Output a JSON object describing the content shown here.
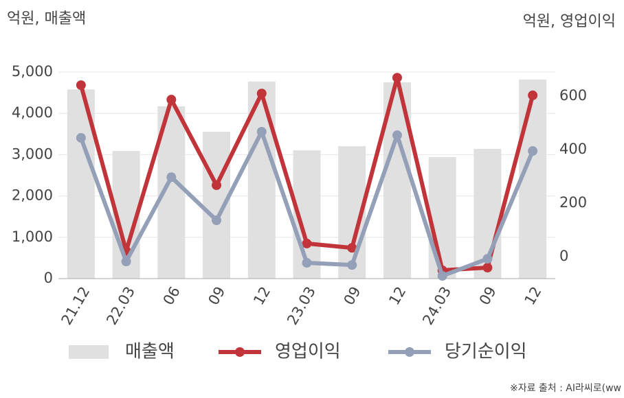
{
  "chart_data": {
    "type": "bar-line",
    "left_unit_label": "억원, 매출액",
    "right_unit_label": "억원, 영업이익",
    "source": "※자료 출처 : AI라씨로(ww",
    "categories": [
      "21.12",
      "22.03",
      "06",
      "09",
      "12",
      "23.03",
      "09",
      "12",
      "24.03",
      "09",
      "12"
    ],
    "series": [
      {
        "name": "매출액",
        "type": "bar",
        "color": "#e0e0e0",
        "values": [
          4580,
          3090,
          4170,
          3555,
          4770,
          3105,
          3205,
          4750,
          2940,
          3140,
          4820
        ]
      },
      {
        "name": "영업이익",
        "type": "line",
        "axis": "y2",
        "color": "#c0343a",
        "values": [
          641,
          21,
          587,
          267,
          610,
          49,
          33,
          669,
          -51,
          -41,
          603
        ]
      },
      {
        "name": "당기순이익",
        "type": "line",
        "axis": "y2",
        "color": "#94a0b8",
        "values": [
          444,
          -18,
          297,
          136,
          467,
          -23,
          -31,
          454,
          -72,
          -8,
          395
        ]
      }
    ],
    "ylim": [
      0,
      5000
    ],
    "yticks": [
      0,
      {
        "value": 1000,
        "label": "1,000"
      },
      {
        "value": 2000,
        "label": "2,000"
      },
      {
        "value": 3000,
        "label": "3,000"
      },
      {
        "value": 4000,
        "label": "4,000"
      },
      {
        "value": 5000,
        "label": "5,000"
      }
    ],
    "y2lim": [
      -82,
      690
    ],
    "y2ticks": [
      0,
      200,
      400,
      600
    ],
    "grid": true
  }
}
